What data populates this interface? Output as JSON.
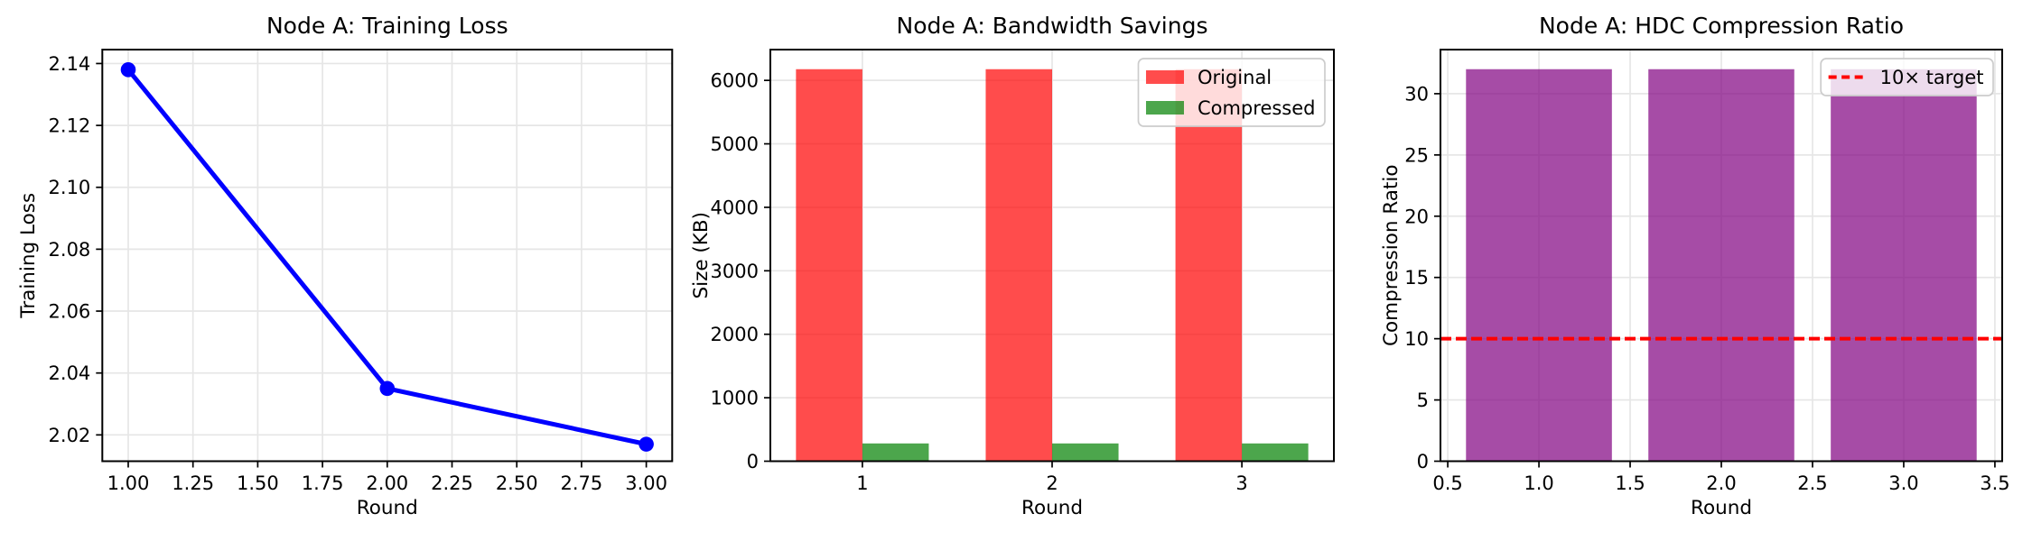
{
  "figure": {
    "node_name": "Node A",
    "background_color": "#ffffff",
    "text_color": "#000000",
    "grid_color": "#e6e6e6",
    "spine_color": "#000000"
  },
  "chart_data": [
    {
      "id": "training-loss",
      "type": "line",
      "title": "Node A: Training Loss",
      "xlabel": "Round",
      "ylabel": "Training Loss",
      "x": [
        1,
        2,
        3
      ],
      "y": [
        2.138,
        2.035,
        2.017
      ],
      "xlim": [
        0.9,
        3.1
      ],
      "ylim": [
        2.0115,
        2.1445
      ],
      "xticks": [
        1.0,
        1.25,
        1.5,
        1.75,
        2.0,
        2.25,
        2.5,
        2.75,
        3.0
      ],
      "xtick_labels": [
        "1.00",
        "1.25",
        "1.50",
        "1.75",
        "2.00",
        "2.25",
        "2.50",
        "2.75",
        "3.00"
      ],
      "yticks": [
        2.02,
        2.04,
        2.06,
        2.08,
        2.1,
        2.12,
        2.14
      ],
      "ytick_labels": [
        "2.02",
        "2.04",
        "2.06",
        "2.08",
        "2.10",
        "2.12",
        "2.14"
      ],
      "grid": true,
      "legend": null,
      "line_color": "#0000FF",
      "marker": "o"
    },
    {
      "id": "bandwidth-savings",
      "type": "grouped_bar",
      "title": "Node A: Bandwidth Savings",
      "xlabel": "Round",
      "ylabel": "Size (KB)",
      "categories": [
        1,
        2,
        3
      ],
      "series": [
        {
          "name": "Original",
          "color": "#FF0000",
          "opacity": 0.7,
          "values": [
            6176,
            6176,
            6176
          ]
        },
        {
          "name": "Compressed",
          "color": "#008000",
          "opacity": 0.7,
          "values": [
            280,
            280,
            280
          ]
        }
      ],
      "bar_width": 0.35,
      "xlim": [
        0.515,
        3.485
      ],
      "ylim": [
        0,
        6485
      ],
      "xticks": [
        1,
        2,
        3
      ],
      "xtick_labels": [
        "1",
        "2",
        "3"
      ],
      "yticks": [
        0,
        1000,
        2000,
        3000,
        4000,
        5000,
        6000
      ],
      "ytick_labels": [
        "0",
        "1000",
        "2000",
        "3000",
        "4000",
        "5000",
        "6000"
      ],
      "grid": true,
      "legend": {
        "position": "upper right",
        "entries": [
          {
            "label": "Original",
            "type": "patch",
            "color": "#FF0000",
            "opacity": 0.7
          },
          {
            "label": "Compressed",
            "type": "patch",
            "color": "#008000",
            "opacity": 0.7
          }
        ]
      }
    },
    {
      "id": "hdc-compression-ratio",
      "type": "bar",
      "title": "Node A: HDC Compression Ratio",
      "xlabel": "Round",
      "ylabel": "Compression Ratio",
      "x": [
        1,
        2,
        3
      ],
      "values": [
        32,
        32,
        32
      ],
      "bar_width": 0.8,
      "bar_color": "#800080",
      "bar_opacity": 0.7,
      "hline": {
        "y": 10,
        "color": "#FF0000",
        "style": "dashed",
        "label": "10× target"
      },
      "xlim": [
        0.46,
        3.54
      ],
      "ylim": [
        0,
        33.6
      ],
      "xticks": [
        0.5,
        1.0,
        1.5,
        2.0,
        2.5,
        3.0,
        3.5
      ],
      "xtick_labels": [
        "0.5",
        "1.0",
        "1.5",
        "2.0",
        "2.5",
        "3.0",
        "3.5"
      ],
      "yticks": [
        0,
        5,
        10,
        15,
        20,
        25,
        30
      ],
      "ytick_labels": [
        "0",
        "5",
        "10",
        "15",
        "20",
        "25",
        "30"
      ],
      "grid": true,
      "legend": {
        "position": "upper right",
        "entries": [
          {
            "label": "10× target",
            "type": "dashed_line",
            "color": "#FF0000"
          }
        ]
      }
    }
  ]
}
